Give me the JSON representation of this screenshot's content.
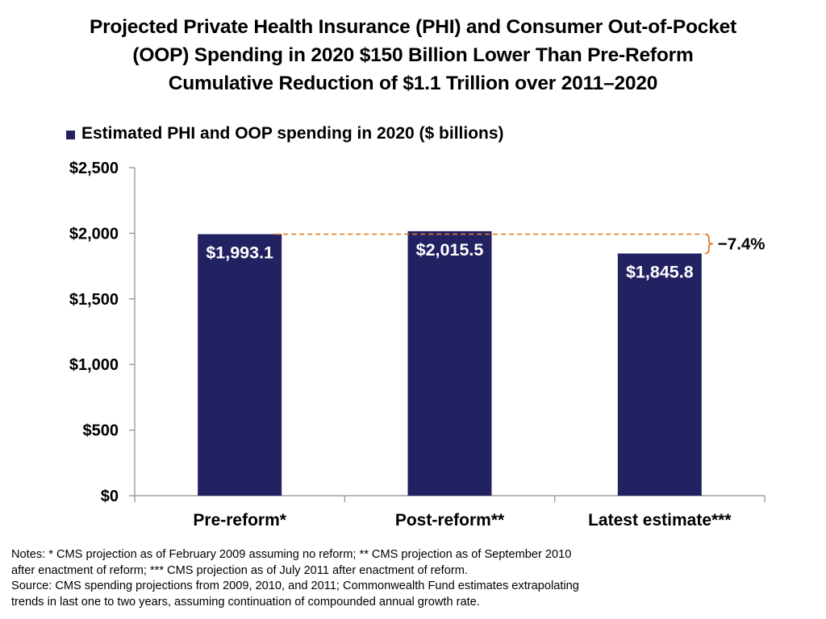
{
  "title_lines": [
    "Projected Private Health Insurance (PHI) and Consumer Out-of-Pocket",
    "(OOP) Spending in 2020 $150 Billion Lower Than Pre-Reform",
    "Cumulative Reduction of $1.1 Trillion over 2011–2020"
  ],
  "colors": {
    "bar": "#222262",
    "reference_line": "#e07b24"
  },
  "chart_data": {
    "type": "bar",
    "categories": [
      "Pre-reform*",
      "Post-reform**",
      "Latest estimate***"
    ],
    "series": [
      {
        "name": "Estimated PHI and OOP spending in 2020 ($ billions)",
        "values": [
          1993.1,
          2015.5,
          1845.8
        ]
      }
    ],
    "data_labels": [
      "$1,993.1",
      "$2,015.5",
      "$1,845.8"
    ],
    "y_ticks": [
      0,
      500,
      1000,
      1500,
      2000,
      2500
    ],
    "y_tick_labels": [
      "$0",
      "$500",
      "$1,000",
      "$1,500",
      "$2,000",
      "$2,500"
    ],
    "ylim": [
      0,
      2500
    ],
    "grid": false,
    "legend_position": "top-left",
    "annotation": {
      "text": "−7.4%",
      "from_value": 1993.1,
      "to_value": 1845.8
    }
  },
  "notes_lines": [
    "Notes: * CMS projection as of February 2009 assuming no reform; ** CMS projection as of September 2010",
    "after enactment of reform; *** CMS projection as of July 2011 after enactment of reform.",
    "Source: CMS spending projections from 2009, 2010, and 2011; Commonwealth Fund estimates extrapolating",
    "trends in last one to two years, assuming continuation of compounded annual growth rate."
  ]
}
